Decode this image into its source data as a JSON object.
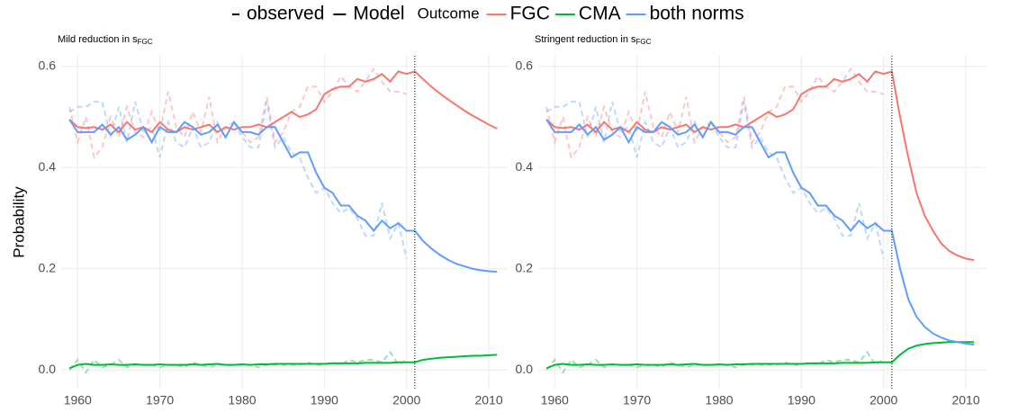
{
  "legend": {
    "linetypes": [
      "observed",
      "Model"
    ],
    "title": "Outcome"
  },
  "chart_data": [
    {
      "type": "line",
      "title": "Mild reduction in s",
      "title_sub": "FGC",
      "ylabel": "Probability",
      "x": [
        1959,
        1960,
        1961,
        1962,
        1963,
        1964,
        1965,
        1966,
        1967,
        1968,
        1969,
        1970,
        1971,
        1972,
        1973,
        1974,
        1975,
        1976,
        1977,
        1978,
        1979,
        1980,
        1981,
        1982,
        1983,
        1984,
        1985,
        1986,
        1987,
        1988,
        1989,
        1990,
        1991,
        1992,
        1993,
        1994,
        1995,
        1996,
        1997,
        1998,
        1999,
        2000,
        2001,
        2002,
        2003,
        2004,
        2005,
        2006,
        2007,
        2008,
        2009,
        2010,
        2011
      ],
      "xlim": [
        1958.0,
        2012.4
      ],
      "ylim": [
        -0.037,
        0.621
      ],
      "xticks": [
        1960,
        1970,
        1980,
        1990,
        2000,
        2010
      ],
      "yticks": [
        {
          "value": 0,
          "label": "0.0"
        },
        0.2,
        0.4,
        0.6
      ],
      "vline": 2001,
      "grid": true,
      "observed_opacity": 0.4,
      "series": [
        {
          "name": "FGC",
          "color": "#F8766D",
          "values": [
            0.495,
            0.48,
            0.478,
            0.48,
            0.475,
            0.485,
            0.47,
            0.49,
            0.475,
            0.48,
            0.47,
            0.49,
            0.475,
            0.47,
            0.48,
            0.475,
            0.48,
            0.485,
            0.47,
            0.48,
            0.475,
            0.48,
            0.48,
            0.485,
            0.48,
            0.49,
            0.5,
            0.51,
            0.5,
            0.505,
            0.515,
            0.545,
            0.555,
            0.56,
            0.56,
            0.575,
            0.57,
            0.575,
            0.585,
            0.57,
            0.59,
            0.585,
            0.59,
            0.575,
            0.56,
            0.547,
            0.535,
            0.524,
            0.513,
            0.503,
            0.494,
            0.485,
            0.477
          ],
          "observed": [
            0.52,
            0.45,
            0.5,
            0.42,
            0.44,
            0.5,
            0.46,
            0.52,
            0.47,
            0.46,
            0.51,
            0.47,
            0.55,
            0.48,
            0.46,
            0.51,
            0.47,
            0.54,
            0.45,
            0.48,
            0.49,
            0.47,
            0.45,
            0.46,
            0.54,
            0.45,
            0.47,
            0.51,
            0.52,
            0.56,
            0.56,
            0.53,
            0.55,
            0.58,
            0.56,
            0.55,
            0.57,
            0.595,
            0.57,
            0.55,
            0.55,
            0.545,
            null,
            null,
            null,
            null,
            null,
            null,
            null,
            null,
            null,
            null,
            null
          ]
        },
        {
          "name": "CMA",
          "color": "#00BA38",
          "values": [
            0.003,
            0.01,
            0.012,
            0.01,
            0.01,
            0.011,
            0.01,
            0.01,
            0.011,
            0.01,
            0.01,
            0.011,
            0.01,
            0.01,
            0.01,
            0.011,
            0.01,
            0.011,
            0.012,
            0.01,
            0.01,
            0.011,
            0.01,
            0.011,
            0.011,
            0.012,
            0.012,
            0.012,
            0.012,
            0.012,
            0.012,
            0.012,
            0.013,
            0.013,
            0.013,
            0.013,
            0.014,
            0.014,
            0.014,
            0.014,
            0.015,
            0.015,
            0.015,
            0.02,
            0.022,
            0.024,
            0.025,
            0.026,
            0.027,
            0.028,
            0.028,
            0.029,
            0.03
          ],
          "observed": [
            0,
            0.02,
            -0.005,
            0.02,
            0.005,
            0.01,
            0.02,
            0.005,
            0.01,
            0.01,
            0.01,
            0.005,
            0.01,
            0.01,
            0.005,
            0.015,
            0.01,
            0.005,
            0.01,
            0.01,
            0.01,
            0.01,
            0.01,
            0.005,
            0.01,
            0.01,
            0.01,
            0.01,
            0.01,
            0.015,
            0.01,
            0.01,
            0.015,
            0.01,
            0.02,
            0.015,
            0.02,
            0.02,
            0.015,
            0.035,
            0.01,
            0.02,
            null,
            null,
            null,
            null,
            null,
            null,
            null,
            null,
            null,
            null,
            null
          ]
        },
        {
          "name": "both norms",
          "color": "#619CFF",
          "values": [
            0.495,
            0.47,
            0.47,
            0.47,
            0.485,
            0.465,
            0.48,
            0.455,
            0.465,
            0.48,
            0.45,
            0.48,
            0.47,
            0.47,
            0.49,
            0.48,
            0.465,
            0.47,
            0.485,
            0.46,
            0.49,
            0.47,
            0.47,
            0.465,
            0.48,
            0.48,
            0.45,
            0.42,
            0.43,
            0.43,
            0.39,
            0.36,
            0.35,
            0.325,
            0.325,
            0.305,
            0.295,
            0.275,
            0.295,
            0.28,
            0.29,
            0.275,
            0.275,
            0.255,
            0.24,
            0.228,
            0.218,
            0.21,
            0.205,
            0.2,
            0.197,
            0.195,
            0.194
          ],
          "observed": [
            0.51,
            0.52,
            0.52,
            0.53,
            0.53,
            0.46,
            0.52,
            0.45,
            0.53,
            0.47,
            0.48,
            0.42,
            0.49,
            0.45,
            0.44,
            0.48,
            0.44,
            0.45,
            0.49,
            0.46,
            0.49,
            0.46,
            0.44,
            0.44,
            0.53,
            0.44,
            0.46,
            0.43,
            0.42,
            0.38,
            0.35,
            0.36,
            0.33,
            0.31,
            0.32,
            0.3,
            0.265,
            0.265,
            0.33,
            0.26,
            0.29,
            0.22,
            null,
            null,
            null,
            null,
            null,
            null,
            null,
            null,
            null,
            null,
            null
          ]
        }
      ]
    },
    {
      "type": "line",
      "title": "Stringent reduction in s",
      "title_sub": "FGC",
      "x": [
        1959,
        1960,
        1961,
        1962,
        1963,
        1964,
        1965,
        1966,
        1967,
        1968,
        1969,
        1970,
        1971,
        1972,
        1973,
        1974,
        1975,
        1976,
        1977,
        1978,
        1979,
        1980,
        1981,
        1982,
        1983,
        1984,
        1985,
        1986,
        1987,
        1988,
        1989,
        1990,
        1991,
        1992,
        1993,
        1994,
        1995,
        1996,
        1997,
        1998,
        1999,
        2000,
        2001,
        2002,
        2003,
        2004,
        2005,
        2006,
        2007,
        2008,
        2009,
        2010,
        2011
      ],
      "xlim": [
        1958.0,
        2012.4
      ],
      "ylim": [
        -0.037,
        0.621
      ],
      "xticks": [
        1960,
        1970,
        1980,
        1990,
        2000,
        2010
      ],
      "yticks": [
        {
          "value": 0,
          "label": "0.0"
        },
        0.2,
        0.4,
        0.6
      ],
      "vline": 2001,
      "grid": true,
      "observed_opacity": 0.4,
      "series": [
        {
          "name": "FGC",
          "color": "#F8766D",
          "values": [
            0.495,
            0.48,
            0.478,
            0.48,
            0.475,
            0.485,
            0.47,
            0.49,
            0.475,
            0.48,
            0.47,
            0.49,
            0.475,
            0.47,
            0.48,
            0.475,
            0.48,
            0.485,
            0.47,
            0.48,
            0.475,
            0.48,
            0.48,
            0.485,
            0.48,
            0.49,
            0.5,
            0.51,
            0.5,
            0.505,
            0.515,
            0.545,
            0.555,
            0.56,
            0.56,
            0.575,
            0.57,
            0.575,
            0.585,
            0.57,
            0.59,
            0.585,
            0.59,
            0.5,
            0.42,
            0.35,
            0.305,
            0.275,
            0.25,
            0.235,
            0.226,
            0.22,
            0.217
          ],
          "observed": [
            0.52,
            0.45,
            0.5,
            0.42,
            0.44,
            0.5,
            0.46,
            0.52,
            0.47,
            0.46,
            0.51,
            0.47,
            0.55,
            0.48,
            0.46,
            0.51,
            0.47,
            0.54,
            0.45,
            0.48,
            0.49,
            0.47,
            0.45,
            0.46,
            0.54,
            0.45,
            0.47,
            0.51,
            0.52,
            0.56,
            0.56,
            0.53,
            0.55,
            0.58,
            0.56,
            0.55,
            0.57,
            0.595,
            0.57,
            0.55,
            0.55,
            0.545,
            null,
            null,
            null,
            null,
            null,
            null,
            null,
            null,
            null,
            null,
            null
          ]
        },
        {
          "name": "CMA",
          "color": "#00BA38",
          "values": [
            0.003,
            0.01,
            0.012,
            0.01,
            0.01,
            0.011,
            0.01,
            0.01,
            0.011,
            0.01,
            0.01,
            0.011,
            0.01,
            0.01,
            0.01,
            0.011,
            0.01,
            0.011,
            0.012,
            0.01,
            0.01,
            0.011,
            0.01,
            0.011,
            0.011,
            0.012,
            0.012,
            0.012,
            0.012,
            0.012,
            0.012,
            0.012,
            0.013,
            0.013,
            0.013,
            0.013,
            0.014,
            0.014,
            0.014,
            0.014,
            0.015,
            0.015,
            0.015,
            0.03,
            0.042,
            0.048,
            0.051,
            0.053,
            0.054,
            0.055,
            0.055,
            0.055,
            0.055
          ],
          "observed": [
            0,
            0.02,
            -0.005,
            0.02,
            0.005,
            0.01,
            0.02,
            0.005,
            0.01,
            0.01,
            0.01,
            0.005,
            0.01,
            0.01,
            0.005,
            0.015,
            0.01,
            0.005,
            0.01,
            0.01,
            0.01,
            0.01,
            0.01,
            0.005,
            0.01,
            0.01,
            0.01,
            0.01,
            0.01,
            0.015,
            0.01,
            0.01,
            0.015,
            0.01,
            0.02,
            0.015,
            0.02,
            0.02,
            0.015,
            0.035,
            0.01,
            0.02,
            null,
            null,
            null,
            null,
            null,
            null,
            null,
            null,
            null,
            null,
            null
          ]
        },
        {
          "name": "both norms",
          "color": "#619CFF",
          "values": [
            0.495,
            0.47,
            0.47,
            0.47,
            0.485,
            0.465,
            0.48,
            0.455,
            0.465,
            0.48,
            0.45,
            0.48,
            0.47,
            0.47,
            0.49,
            0.48,
            0.465,
            0.47,
            0.485,
            0.46,
            0.49,
            0.47,
            0.47,
            0.465,
            0.48,
            0.48,
            0.45,
            0.42,
            0.43,
            0.43,
            0.39,
            0.36,
            0.35,
            0.325,
            0.325,
            0.305,
            0.295,
            0.275,
            0.295,
            0.28,
            0.29,
            0.275,
            0.275,
            0.2,
            0.14,
            0.105,
            0.085,
            0.072,
            0.064,
            0.058,
            0.055,
            0.052,
            0.05
          ],
          "observed": [
            0.51,
            0.52,
            0.52,
            0.53,
            0.53,
            0.46,
            0.52,
            0.45,
            0.53,
            0.47,
            0.48,
            0.42,
            0.49,
            0.45,
            0.44,
            0.48,
            0.44,
            0.45,
            0.49,
            0.46,
            0.49,
            0.46,
            0.44,
            0.44,
            0.53,
            0.44,
            0.46,
            0.43,
            0.42,
            0.38,
            0.35,
            0.36,
            0.33,
            0.31,
            0.32,
            0.3,
            0.265,
            0.265,
            0.33,
            0.26,
            0.29,
            0.22,
            null,
            null,
            null,
            null,
            null,
            null,
            null,
            null,
            null,
            null,
            null
          ]
        }
      ]
    }
  ]
}
